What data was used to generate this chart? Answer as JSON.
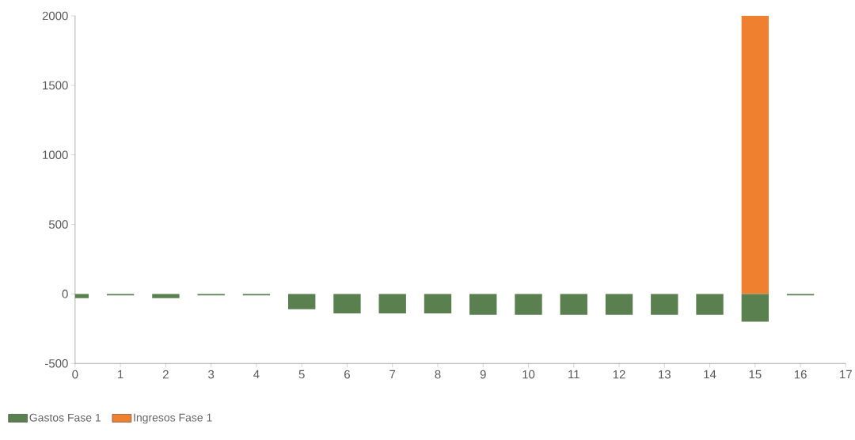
{
  "chart_data": {
    "type": "bar",
    "stacked": true,
    "x": [
      0,
      1,
      2,
      3,
      4,
      5,
      6,
      7,
      8,
      9,
      10,
      11,
      12,
      13,
      14,
      15,
      16
    ],
    "series": [
      {
        "name": "Gastos Fase 1",
        "color": "#5a8050",
        "values": [
          -30,
          -10,
          -30,
          -10,
          -10,
          -110,
          -140,
          -140,
          -140,
          -150,
          -150,
          -150,
          -150,
          -150,
          -150,
          -200,
          -10
        ]
      },
      {
        "name": "Ingresos Fase 1",
        "color": "#ee8030",
        "values": [
          null,
          null,
          null,
          null,
          null,
          null,
          null,
          null,
          null,
          null,
          null,
          null,
          null,
          null,
          null,
          2000,
          null
        ]
      }
    ],
    "xlim": [
      0,
      17
    ],
    "xticks": [
      0,
      1,
      2,
      3,
      4,
      5,
      6,
      7,
      8,
      9,
      10,
      11,
      12,
      13,
      14,
      15,
      16,
      17
    ],
    "ylim": [
      -500,
      2000
    ],
    "yticks": [
      -500,
      0,
      500,
      1000,
      1500,
      2000
    ],
    "legend": "bottom"
  }
}
